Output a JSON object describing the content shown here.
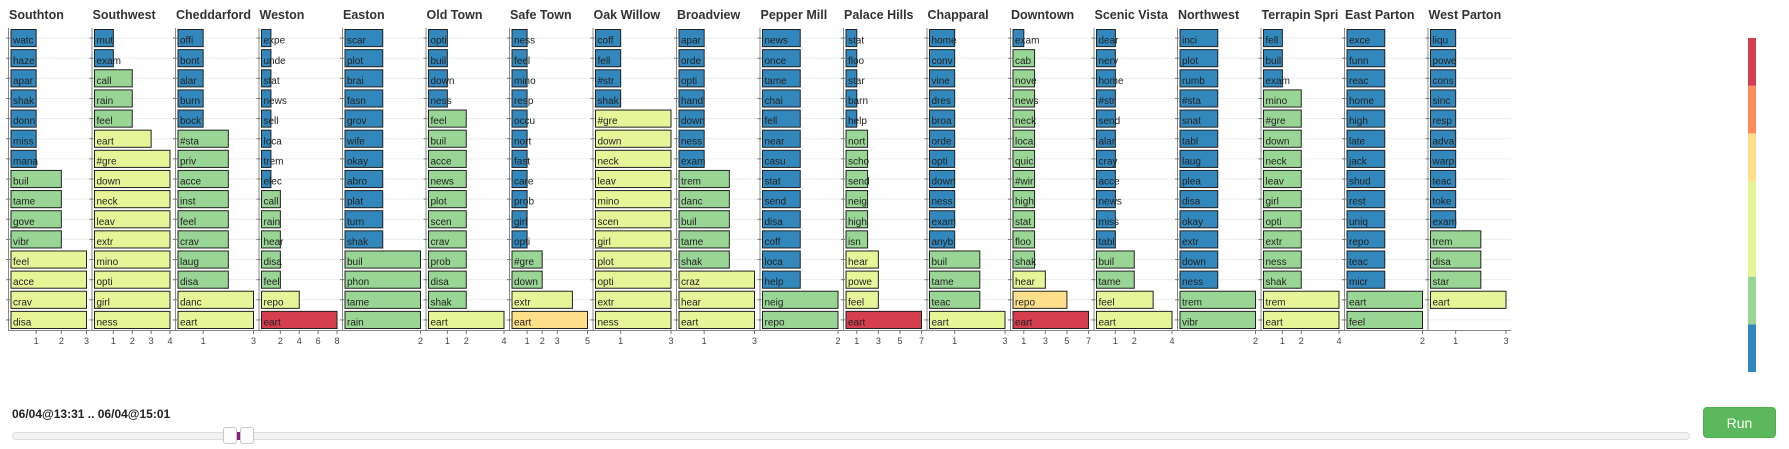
{
  "chart_data": {
    "type": "bar",
    "orientation": "horizontal",
    "grid": true,
    "color_scale": {
      "type": "quantize",
      "ticks": [
        "1",
        "2",
        "3",
        "5",
        "6",
        "8"
      ],
      "bands": [
        {
          "min": 1,
          "max": 2,
          "color": "#3288bd"
        },
        {
          "min": 2,
          "max": 3,
          "color": "#99d594"
        },
        {
          "min": 3,
          "max": 5,
          "color": "#e6f598"
        },
        {
          "min": 5,
          "max": 6,
          "color": "#fee08b"
        },
        {
          "min": 6,
          "max": 7,
          "color": "#fc8d59"
        },
        {
          "min": 7,
          "max": 8,
          "color": "#d53e4f"
        }
      ]
    },
    "panels": [
      {
        "title": "Southton",
        "xmax": 3,
        "ticks": [
          1,
          2,
          3
        ],
        "bars": [
          [
            "watc",
            1
          ],
          [
            "haze",
            1
          ],
          [
            "apar",
            1
          ],
          [
            "shak",
            1
          ],
          [
            "donn",
            1
          ],
          [
            "miss",
            1
          ],
          [
            "mana",
            1
          ],
          [
            "buil",
            2
          ],
          [
            "tame",
            2
          ],
          [
            "gove",
            2
          ],
          [
            "vibr",
            2
          ],
          [
            "feel",
            3
          ],
          [
            "acce",
            3
          ],
          [
            "crav",
            3
          ],
          [
            "disa",
            3
          ]
        ]
      },
      {
        "title": "Southwest",
        "xmax": 4,
        "ticks": [
          1,
          2,
          3,
          4
        ],
        "bars": [
          [
            "mut",
            1
          ],
          [
            "exam",
            1
          ],
          [
            "call",
            2
          ],
          [
            "rain",
            2
          ],
          [
            "feel",
            2
          ],
          [
            "eart",
            3
          ],
          [
            "#gre",
            4
          ],
          [
            "down",
            4
          ],
          [
            "neck",
            4
          ],
          [
            "leav",
            4
          ],
          [
            "extr",
            4
          ],
          [
            "mino",
            4
          ],
          [
            "opti",
            4
          ],
          [
            "girl",
            4
          ],
          [
            "ness",
            4
          ]
        ]
      },
      {
        "title": "Cheddarford",
        "xmax": 3,
        "ticks": [
          1,
          3
        ],
        "bars": [
          [
            "offi",
            1
          ],
          [
            "bont",
            1
          ],
          [
            "alar",
            1
          ],
          [
            "burn",
            1
          ],
          [
            "bock",
            1
          ],
          [
            "#sta",
            2
          ],
          [
            "priv",
            2
          ],
          [
            "acce",
            2
          ],
          [
            "inst",
            2
          ],
          [
            "feel",
            2
          ],
          [
            "crav",
            2
          ],
          [
            "laug",
            2
          ],
          [
            "disa",
            2
          ],
          [
            "danc",
            3
          ],
          [
            "eart",
            3
          ]
        ]
      },
      {
        "title": "Weston",
        "xmax": 8,
        "ticks": [
          2,
          4,
          6,
          8
        ],
        "bars": [
          [
            "expe",
            1
          ],
          [
            "unde",
            1
          ],
          [
            "stat",
            1
          ],
          [
            "news",
            1
          ],
          [
            "sell",
            1
          ],
          [
            "loca",
            1
          ],
          [
            "trem",
            1
          ],
          [
            "elec",
            1
          ],
          [
            "call",
            2
          ],
          [
            "rain",
            2
          ],
          [
            "hear",
            2
          ],
          [
            "disa",
            2
          ],
          [
            "feel",
            2
          ],
          [
            "repo",
            4
          ],
          [
            "eart",
            8
          ]
        ]
      },
      {
        "title": "Easton",
        "xmax": 2,
        "ticks": [
          2
        ],
        "bars": [
          [
            "scar",
            1
          ],
          [
            "plot",
            1
          ],
          [
            "brai",
            1
          ],
          [
            "fasn",
            1
          ],
          [
            "grov",
            1
          ],
          [
            "wife",
            1
          ],
          [
            "okay",
            1
          ],
          [
            "abro",
            1
          ],
          [
            "plat",
            1
          ],
          [
            "turn",
            1
          ],
          [
            "shak",
            1
          ],
          [
            "buil",
            2
          ],
          [
            "phon",
            2
          ],
          [
            "tame",
            2
          ],
          [
            "rain",
            2
          ]
        ]
      },
      {
        "title": "Old Town",
        "xmax": 4,
        "ticks": [
          1,
          2,
          4
        ],
        "bars": [
          [
            "opti",
            1
          ],
          [
            "buil",
            1
          ],
          [
            "down",
            1
          ],
          [
            "ness",
            1
          ],
          [
            "feel",
            2
          ],
          [
            "buil",
            2
          ],
          [
            "acce",
            2
          ],
          [
            "news",
            2
          ],
          [
            "plot",
            2
          ],
          [
            "scen",
            2
          ],
          [
            "crav",
            2
          ],
          [
            "prob",
            2
          ],
          [
            "disa",
            2
          ],
          [
            "shak",
            2
          ],
          [
            "eart",
            4
          ]
        ]
      },
      {
        "title": "Safe Town",
        "xmax": 5,
        "ticks": [
          1,
          2,
          3,
          5
        ],
        "bars": [
          [
            "ness",
            1
          ],
          [
            "feel",
            1
          ],
          [
            "mino",
            1
          ],
          [
            "resp",
            1
          ],
          [
            "occu",
            1
          ],
          [
            "nort",
            1
          ],
          [
            "fast",
            1
          ],
          [
            "care",
            1
          ],
          [
            "prob",
            1
          ],
          [
            "girl",
            1
          ],
          [
            "opti",
            1
          ],
          [
            "#gre",
            2
          ],
          [
            "down",
            2
          ],
          [
            "extr",
            4
          ],
          [
            "eart",
            5
          ]
        ]
      },
      {
        "title": "Oak Willow",
        "xmax": 3,
        "ticks": [
          1,
          3
        ],
        "bars": [
          [
            "coff",
            1
          ],
          [
            "fell",
            1
          ],
          [
            "#str",
            1
          ],
          [
            "shak",
            1
          ],
          [
            "#gre",
            3
          ],
          [
            "down",
            3
          ],
          [
            "neck",
            3
          ],
          [
            "leav",
            3
          ],
          [
            "mino",
            3
          ],
          [
            "scen",
            3
          ],
          [
            "girl",
            3
          ],
          [
            "plot",
            3
          ],
          [
            "opti",
            3
          ],
          [
            "extr",
            3
          ],
          [
            "ness",
            3
          ]
        ]
      },
      {
        "title": "Broadview",
        "xmax": 3,
        "ticks": [
          1,
          3
        ],
        "bars": [
          [
            "apar",
            1
          ],
          [
            "orde",
            1
          ],
          [
            "opti",
            1
          ],
          [
            "hand",
            1
          ],
          [
            "down",
            1
          ],
          [
            "ness",
            1
          ],
          [
            "exam",
            1
          ],
          [
            "trem",
            2
          ],
          [
            "danc",
            2
          ],
          [
            "buil",
            2
          ],
          [
            "tame",
            2
          ],
          [
            "shak",
            2
          ],
          [
            "craz",
            3
          ],
          [
            "hear",
            3
          ],
          [
            "eart",
            3
          ]
        ]
      },
      {
        "title": "Pepper Mill",
        "xmax": 2,
        "ticks": [
          2
        ],
        "bars": [
          [
            "news",
            1
          ],
          [
            "once",
            1
          ],
          [
            "tame",
            1
          ],
          [
            "chai",
            1
          ],
          [
            "fell",
            1
          ],
          [
            "near",
            1
          ],
          [
            "casu",
            1
          ],
          [
            "stat",
            1
          ],
          [
            "send",
            1
          ],
          [
            "disa",
            1
          ],
          [
            "coff",
            1
          ],
          [
            "loca",
            1
          ],
          [
            "help",
            1
          ],
          [
            "neig",
            2
          ],
          [
            "repo",
            2
          ]
        ]
      },
      {
        "title": "Palace Hills",
        "xmax": 7,
        "ticks": [
          1,
          3,
          5,
          7
        ],
        "bars": [
          [
            "stat",
            1
          ],
          [
            "floo",
            1
          ],
          [
            "star",
            1
          ],
          [
            "barn",
            1
          ],
          [
            "help",
            1
          ],
          [
            "nort",
            2
          ],
          [
            "scho",
            2
          ],
          [
            "send",
            2
          ],
          [
            "neig",
            2
          ],
          [
            "high",
            2
          ],
          [
            "isn",
            2
          ],
          [
            "hear",
            3
          ],
          [
            "powe",
            3
          ],
          [
            "feel",
            3
          ],
          [
            "eart",
            7
          ]
        ]
      },
      {
        "title": "Chapparal",
        "xmax": 3,
        "ticks": [
          1,
          3
        ],
        "bars": [
          [
            "home",
            1
          ],
          [
            "conv",
            1
          ],
          [
            "vine",
            1
          ],
          [
            "dres",
            1
          ],
          [
            "broa",
            1
          ],
          [
            "orde",
            1
          ],
          [
            "opti",
            1
          ],
          [
            "down",
            1
          ],
          [
            "ness",
            1
          ],
          [
            "exam",
            1
          ],
          [
            "anyb",
            1
          ],
          [
            "buil",
            2
          ],
          [
            "tame",
            2
          ],
          [
            "teac",
            2
          ],
          [
            "eart",
            3
          ]
        ]
      },
      {
        "title": "Downtown",
        "xmax": 7,
        "ticks": [
          1,
          3,
          5,
          7
        ],
        "bars": [
          [
            "exam",
            1
          ],
          [
            "cab",
            2
          ],
          [
            "nove",
            2
          ],
          [
            "news",
            2
          ],
          [
            "neck",
            2
          ],
          [
            "loca",
            2
          ],
          [
            "quic",
            2
          ],
          [
            "#wir",
            2
          ],
          [
            "high",
            2
          ],
          [
            "stat",
            2
          ],
          [
            "floo",
            2
          ],
          [
            "shak",
            2
          ],
          [
            "hear",
            3
          ],
          [
            "repo",
            5
          ],
          [
            "eart",
            7
          ]
        ]
      },
      {
        "title": "Scenic Vista",
        "xmax": 4,
        "ticks": [
          1,
          2,
          4
        ],
        "bars": [
          [
            "dear",
            1
          ],
          [
            "nerv",
            1
          ],
          [
            "home",
            1
          ],
          [
            "#str",
            1
          ],
          [
            "send",
            1
          ],
          [
            "alar",
            1
          ],
          [
            "cray",
            1
          ],
          [
            "acce",
            1
          ],
          [
            "news",
            1
          ],
          [
            "miss",
            1
          ],
          [
            "tabl",
            1
          ],
          [
            "buil",
            2
          ],
          [
            "tame",
            2
          ],
          [
            "feel",
            3
          ],
          [
            "eart",
            4
          ]
        ]
      },
      {
        "title": "Northwest",
        "xmax": 2,
        "ticks": [
          2
        ],
        "bars": [
          [
            "inci",
            1
          ],
          [
            "plot",
            1
          ],
          [
            "rumb",
            1
          ],
          [
            "#sta",
            1
          ],
          [
            "snat",
            1
          ],
          [
            "tabl",
            1
          ],
          [
            "laug",
            1
          ],
          [
            "plea",
            1
          ],
          [
            "disa",
            1
          ],
          [
            "okay",
            1
          ],
          [
            "extr",
            1
          ],
          [
            "down",
            1
          ],
          [
            "ness",
            1
          ],
          [
            "trem",
            2
          ],
          [
            "vibr",
            2
          ]
        ]
      },
      {
        "title": "Terrapin Spri",
        "xmax": 4,
        "ticks": [
          1,
          2,
          4
        ],
        "bars": [
          [
            "fell",
            1
          ],
          [
            "buil",
            1
          ],
          [
            "exam",
            1
          ],
          [
            "mino",
            2
          ],
          [
            "#gre",
            2
          ],
          [
            "down",
            2
          ],
          [
            "neck",
            2
          ],
          [
            "leav",
            2
          ],
          [
            "girl",
            2
          ],
          [
            "opti",
            2
          ],
          [
            "extr",
            2
          ],
          [
            "ness",
            2
          ],
          [
            "shak",
            2
          ],
          [
            "trem",
            4
          ],
          [
            "eart",
            4
          ]
        ]
      },
      {
        "title": "East Parton",
        "xmax": 2,
        "ticks": [
          2
        ],
        "bars": [
          [
            "exce",
            1
          ],
          [
            "funn",
            1
          ],
          [
            "reac",
            1
          ],
          [
            "home",
            1
          ],
          [
            "high",
            1
          ],
          [
            "late",
            1
          ],
          [
            "jack",
            1
          ],
          [
            "shud",
            1
          ],
          [
            "rest",
            1
          ],
          [
            "uniq",
            1
          ],
          [
            "repo",
            1
          ],
          [
            "teac",
            1
          ],
          [
            "micr",
            1
          ],
          [
            "eart",
            2
          ],
          [
            "feel",
            2
          ]
        ]
      },
      {
        "title": "West Parton",
        "xmax": 3,
        "ticks": [
          1,
          3
        ],
        "bars": [
          [
            "liqu",
            1
          ],
          [
            "powe",
            1
          ],
          [
            "cons",
            1
          ],
          [
            "sinc",
            1
          ],
          [
            "resp",
            1
          ],
          [
            "adva",
            1
          ],
          [
            "warp",
            1
          ],
          [
            "teac",
            1
          ],
          [
            "toke",
            1
          ],
          [
            "exam",
            1
          ],
          [
            "trem",
            2
          ],
          [
            "disa",
            2
          ],
          [
            "star",
            2
          ],
          [
            "eart",
            3
          ]
        ]
      }
    ]
  },
  "time_range": "06/04@13:31 .. 06/04@15:01",
  "slider": {
    "start_fraction": 0.13,
    "end_fraction": 0.14
  },
  "run_label": "Run"
}
